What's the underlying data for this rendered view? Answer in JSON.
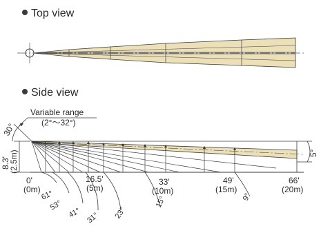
{
  "top_view": {
    "title": "Top view"
  },
  "side_view": {
    "title": "Side view",
    "variable_range": {
      "label": "Variable range",
      "range": "(2°～32°)"
    },
    "tilt_angle": "30°",
    "height_ft": "8.3'",
    "height_m": "(2.5m)",
    "spread_angle": "5°",
    "distances": [
      {
        "ft": "0'",
        "m": "(0m)"
      },
      {
        "ft": "16.5'",
        "m": "(5m)"
      },
      {
        "ft": "33'",
        "m": "(10m)"
      },
      {
        "ft": "49'",
        "m": "(15m)"
      },
      {
        "ft": "66'",
        "m": "(20m)"
      }
    ],
    "angles": [
      "61°",
      "53°",
      "41°",
      "31°",
      "23°",
      "15°",
      "9°"
    ]
  },
  "colors": {
    "beam_fill": "#ece0b8",
    "stroke": "#3a3a3a",
    "axis": "#555555"
  }
}
